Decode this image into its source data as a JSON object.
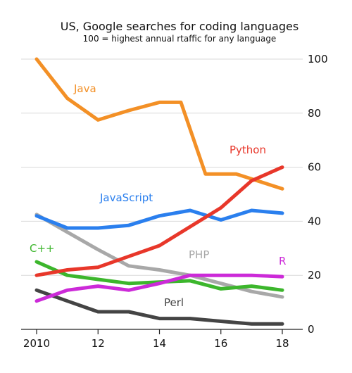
{
  "chart_data": {
    "type": "line",
    "title": "US, Google searches for coding languages",
    "subtitle": "100 = highest annual rtaffic for any language",
    "xlabel": "",
    "ylabel": "",
    "x": [
      2010,
      2011,
      2012,
      2013,
      2014,
      2015,
      2016,
      2017,
      2018
    ],
    "xticks": [
      {
        "value": 2010,
        "label": "2010"
      },
      {
        "value": 2012,
        "label": "12"
      },
      {
        "value": 2014,
        "label": "14"
      },
      {
        "value": 2016,
        "label": "16"
      },
      {
        "value": 2018,
        "label": "18"
      }
    ],
    "yticks": [
      0,
      20,
      40,
      60,
      80,
      100
    ],
    "xlim": [
      2010,
      2018
    ],
    "ylim": [
      0,
      100
    ],
    "grid": "horizontal",
    "series": [
      {
        "name": "Java",
        "color": "#f39026",
        "points": [
          [
            2010,
            100
          ],
          [
            2011,
            85.5
          ],
          [
            2012,
            77.5
          ],
          [
            2013,
            81
          ],
          [
            2014,
            84
          ],
          [
            2014.7,
            84
          ],
          [
            2015.5,
            57.5
          ],
          [
            2016.5,
            57.5
          ],
          [
            2018,
            52
          ]
        ]
      },
      {
        "name": "Python",
        "color": "#e8372a",
        "points": [
          [
            2010,
            20
          ],
          [
            2011,
            22
          ],
          [
            2012,
            23
          ],
          [
            2013,
            27
          ],
          [
            2014,
            31
          ],
          [
            2015,
            38
          ],
          [
            2016,
            45
          ],
          [
            2017,
            55
          ],
          [
            2018,
            60
          ]
        ]
      },
      {
        "name": "JavaScript",
        "color": "#2a7fee",
        "points": [
          [
            2010,
            42
          ],
          [
            2011,
            37.5
          ],
          [
            2012,
            37.5
          ],
          [
            2013,
            38.5
          ],
          [
            2014,
            42
          ],
          [
            2015,
            44
          ],
          [
            2016,
            40.5
          ],
          [
            2017,
            44
          ],
          [
            2018,
            43
          ]
        ]
      },
      {
        "name": "PHP",
        "color": "#a8a8a8",
        "points": [
          [
            2010,
            42.5
          ],
          [
            2011,
            36
          ],
          [
            2012,
            29.5
          ],
          [
            2013,
            23.5
          ],
          [
            2014,
            22
          ],
          [
            2015,
            20
          ],
          [
            2016,
            17
          ],
          [
            2017,
            14
          ],
          [
            2018,
            12
          ]
        ]
      },
      {
        "name": "C++",
        "color": "#3cb62c",
        "points": [
          [
            2010,
            25
          ],
          [
            2011,
            20
          ],
          [
            2012,
            18.5
          ],
          [
            2013,
            17
          ],
          [
            2014,
            17.5
          ],
          [
            2015,
            18
          ],
          [
            2016,
            15
          ],
          [
            2017,
            16
          ],
          [
            2018,
            14.5
          ]
        ]
      },
      {
        "name": "R",
        "color": "#cc2ad8",
        "points": [
          [
            2010,
            10.5
          ],
          [
            2011,
            14.5
          ],
          [
            2012,
            16
          ],
          [
            2013,
            14.5
          ],
          [
            2014,
            17
          ],
          [
            2015,
            20
          ],
          [
            2016,
            20
          ],
          [
            2017,
            20
          ],
          [
            2018,
            19.5
          ]
        ]
      },
      {
        "name": "Perl",
        "color": "#444444",
        "points": [
          [
            2010,
            14.5
          ],
          [
            2011,
            10.5
          ],
          [
            2012,
            6.5
          ],
          [
            2013,
            6.5
          ],
          [
            2014,
            4
          ],
          [
            2015,
            4
          ],
          [
            2016,
            3
          ],
          [
            2017,
            2
          ],
          [
            2018,
            2
          ]
        ]
      }
    ]
  }
}
